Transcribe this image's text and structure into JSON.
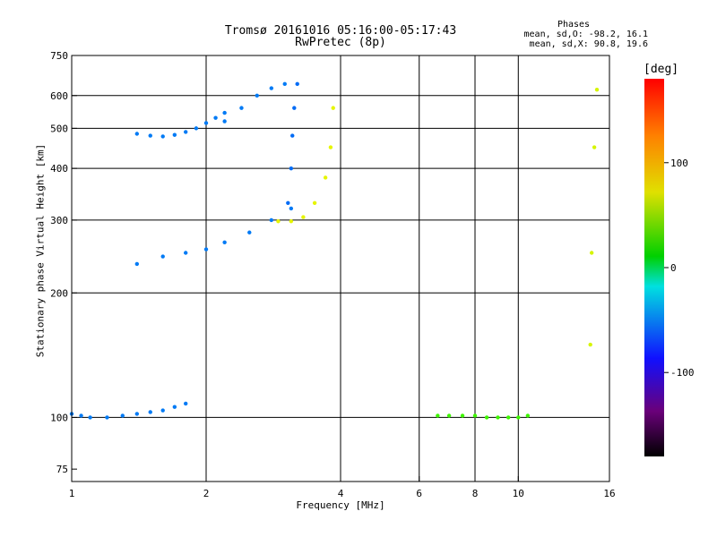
{
  "header": {
    "title_line1": "Tromsø 20161016 05:16:00-05:17:43",
    "title_line2": "RwPretec (8p)"
  },
  "phases": {
    "title": "Phases",
    "line1": "mean, sd,O: -98.2, 16.1",
    "line2": "mean, sd,X:  90.8, 19.6"
  },
  "colorbar": {
    "unit": "[deg]",
    "ticks": [
      {
        "label": "100",
        "value": 100
      },
      {
        "label": "0",
        "value": 0
      },
      {
        "label": "-100",
        "value": -100
      }
    ],
    "range": [
      -180,
      180
    ],
    "colormap": "rainbow (black-purple-blue-cyan-green-yellow-red)"
  },
  "chart_data": {
    "type": "scatter",
    "title": "Tromsø 20161016 05:16:00-05:17:43",
    "subtitle": "RwPretec (8p)",
    "xlabel": "Frequency [MHz]",
    "ylabel": "Stationary phase Virtual Height [km]",
    "xscale": "log",
    "yscale": "log",
    "xlim": [
      1,
      16
    ],
    "ylim": [
      70,
      750
    ],
    "xticks": [
      {
        "label": "1",
        "value": 1
      },
      {
        "label": "2",
        "value": 2
      },
      {
        "label": "4",
        "value": 4
      },
      {
        "label": "6",
        "value": 6
      },
      {
        "label": "8",
        "value": 8
      },
      {
        "label": "10",
        "value": 10
      },
      {
        "label": "16",
        "value": 16
      }
    ],
    "yticks": [
      {
        "label": "75",
        "value": 75
      },
      {
        "label": "100",
        "value": 100
      },
      {
        "label": "200",
        "value": 200
      },
      {
        "label": "300",
        "value": 300
      },
      {
        "label": "400",
        "value": 400
      },
      {
        "label": "500",
        "value": 500
      },
      {
        "label": "600",
        "value": 600
      },
      {
        "label": "750",
        "value": 750
      }
    ],
    "grid_x": [
      2,
      4,
      6,
      8,
      10
    ],
    "grid_y": [
      100,
      200,
      300,
      400,
      500,
      600
    ],
    "color_meaning": "phase [deg]",
    "traces": [
      {
        "x": [
          1.0,
          1.05,
          1.1,
          1.2,
          1.3,
          1.4,
          1.5,
          1.6,
          1.7,
          1.8
        ],
        "y": [
          102,
          101,
          100,
          100,
          101,
          102,
          103,
          104,
          106,
          108
        ],
        "phase": -100
      },
      {
        "x": [
          1.4,
          1.5,
          1.6,
          1.7,
          1.8,
          1.9,
          2.0,
          2.1,
          2.2
        ],
        "y": [
          485,
          480,
          478,
          482,
          490,
          500,
          515,
          530,
          545
        ],
        "phase": -100
      },
      {
        "x": [
          1.4,
          1.6,
          1.8,
          2.0,
          2.2,
          2.5,
          2.8,
          3.1
        ],
        "y": [
          235,
          245,
          250,
          255,
          265,
          280,
          300,
          320
        ],
        "phase": -100
      },
      {
        "x": [
          2.2,
          2.4,
          2.6,
          2.8,
          3.0
        ],
        "y": [
          520,
          560,
          600,
          625,
          640
        ],
        "phase": -100
      },
      {
        "x": [
          3.05,
          3.1,
          3.12,
          3.15,
          3.2
        ],
        "y": [
          330,
          400,
          480,
          560,
          640
        ],
        "phase": -105
      },
      {
        "x": [
          2.9,
          3.1,
          3.3,
          3.5,
          3.7,
          3.8,
          3.85
        ],
        "y": [
          298,
          298,
          305,
          330,
          380,
          450,
          560
        ],
        "phase": 95
      },
      {
        "x": [
          6.6,
          7.0,
          7.5,
          8.0,
          8.5,
          9.0,
          9.5,
          10.0,
          10.5
        ],
        "y": [
          101,
          101,
          101,
          101,
          100,
          100,
          100,
          100,
          101
        ],
        "phase": 40
      },
      {
        "x": [
          14.5,
          14.6,
          14.8,
          15.0
        ],
        "y": [
          150,
          250,
          450,
          620
        ],
        "phase": 90
      }
    ]
  }
}
